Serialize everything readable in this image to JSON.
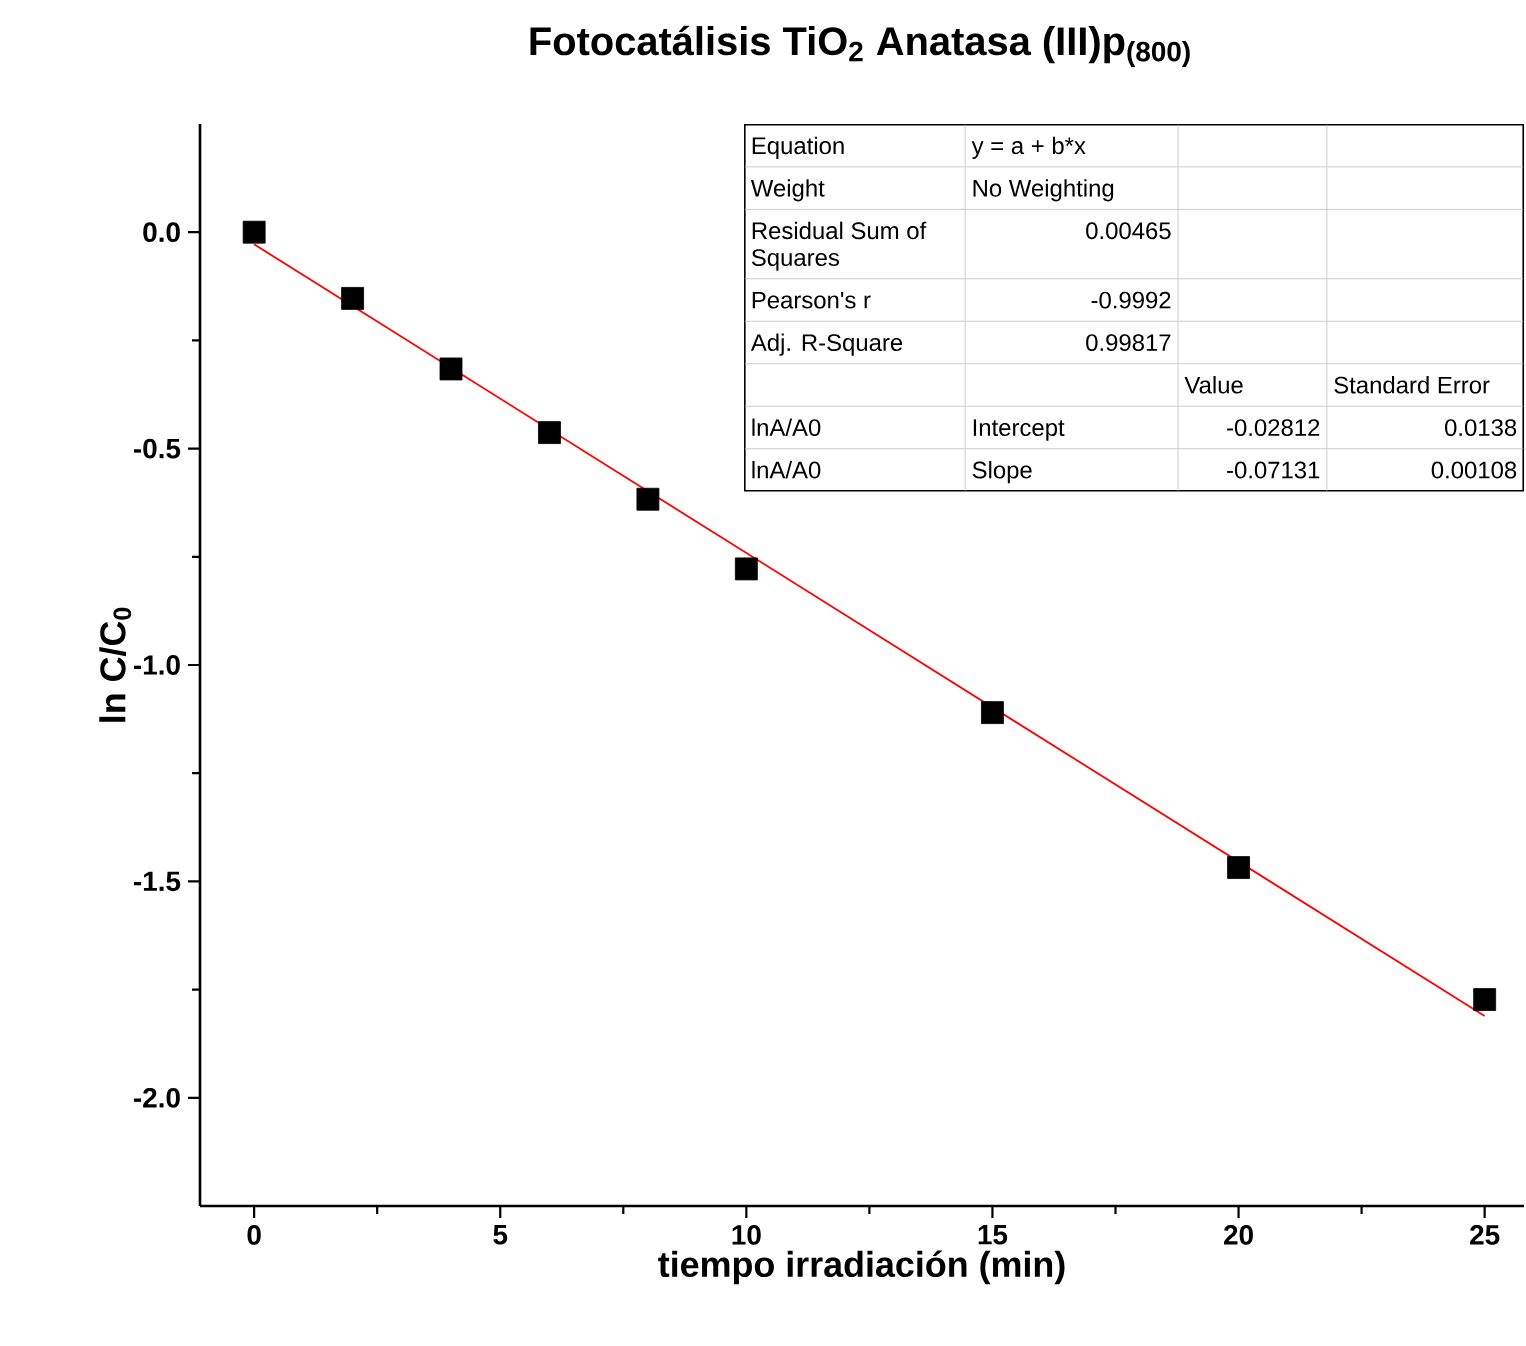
{
  "chart_data": {
    "type": "scatter",
    "title": "Fotocatálisis TiO$_{2}$ Anatasa (III)p$_{(800)}$",
    "xlabel": "tiempo irradiación (min)",
    "ylabel": "ln C/C$_{0}$",
    "xlim": [
      -1.1,
      25.8
    ],
    "ylim": [
      -2.25,
      0.25
    ],
    "xticks": [
      0,
      5,
      10,
      15,
      20,
      25
    ],
    "yticks": [
      {
        "value": -2.0,
        "label": "-2.0"
      },
      {
        "value": -1.5,
        "label": "-1.5"
      },
      {
        "value": -1.0,
        "label": "-1.0"
      },
      {
        "value": -0.5,
        "label": "-0.5"
      },
      {
        "value": 0.0,
        "label": "0.0"
      }
    ],
    "series": [
      {
        "color": "#000000",
        "marker": "square",
        "x": [
          0,
          2,
          4,
          6,
          8,
          10,
          15,
          20,
          25
        ],
        "values": [
          0.0,
          -0.153,
          -0.316,
          -0.463,
          -0.617,
          -0.778,
          -1.11,
          -1.468,
          -1.773
        ]
      },
      {
        "type": "line",
        "color": "#ff0000",
        "line_style": "solid",
        "x": [
          0,
          25
        ],
        "values": [
          -0.028,
          -1.811
        ]
      }
    ],
    "annotations": [
      "Equation",
      "y = a + b*x",
      "Weight",
      "No Weighting",
      "Residual Sum of Squares",
      "0.00465",
      "Pearson's r",
      "-0.9992",
      "Adj. R-Square",
      "0.99817",
      "Value",
      "Standard Error",
      "lnA/A0",
      "Intercept",
      "-0.02812",
      "0.0138",
      "lnA/A0",
      "Slope",
      "-0.07131",
      "0.00108"
    ]
  }
}
